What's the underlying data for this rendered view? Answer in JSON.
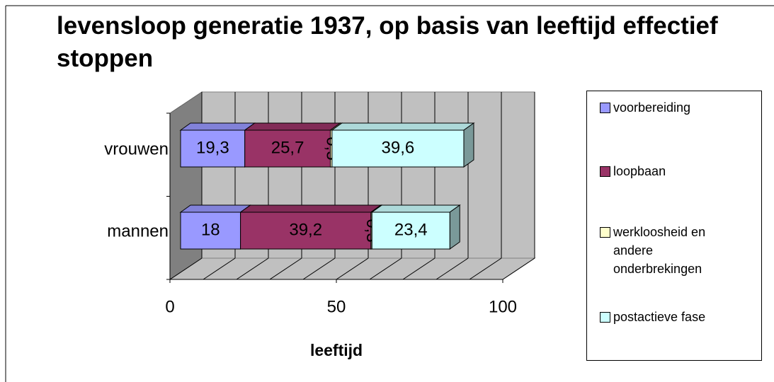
{
  "chart_data": {
    "type": "bar3d_stacked_horizontal",
    "title": "levensloop generatie 1937, op basis van leeftijd effectief stoppen",
    "x_label": "leeftijd",
    "categories": [
      "vrouwen",
      "mannen"
    ],
    "series": [
      {
        "name": "voorbereiding",
        "color": "#9999ff",
        "values": [
          19.3,
          18
        ],
        "value_labels": [
          "19,3",
          "18"
        ]
      },
      {
        "name": "loopbaan",
        "color": "#993366",
        "values": [
          25.7,
          39.2
        ],
        "value_labels": [
          "25,7",
          "39,2"
        ]
      },
      {
        "name": "werkloosheid en andere onderbrekingen",
        "color": "#ffffcc",
        "values": [
          0.5,
          0.3
        ],
        "value_labels": [
          "0,5",
          "0,3"
        ]
      },
      {
        "name": "postactieve fase",
        "color": "#ccffff",
        "values": [
          39.6,
          23.4
        ],
        "value_labels": [
          "39,6",
          "23,4"
        ]
      }
    ],
    "xlim": [
      0,
      100
    ],
    "xticks": [
      0,
      50,
      100
    ],
    "xgrid": [
      0,
      10,
      20,
      30,
      40,
      50,
      60,
      70,
      80,
      90,
      100
    ],
    "legend": "right"
  }
}
